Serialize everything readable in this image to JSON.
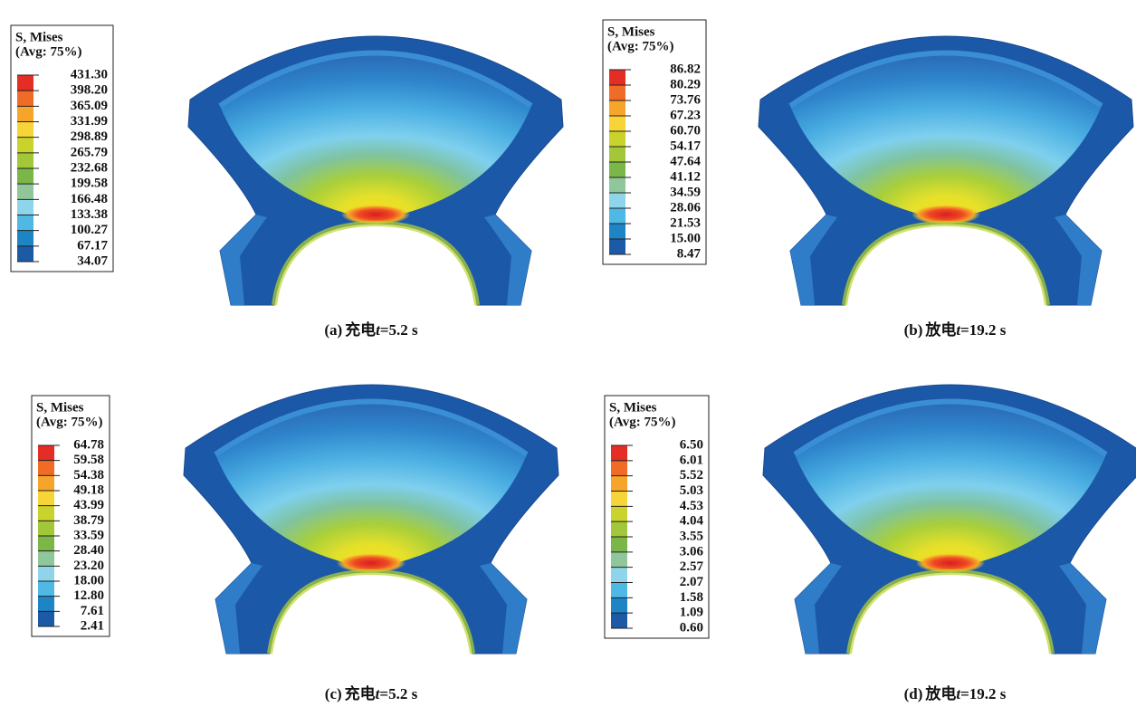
{
  "panels": [
    {
      "legend": {
        "title": [
          "S, Mises",
          "(Avg: 75%)"
        ],
        "values": [
          "431.30",
          "398.20",
          "365.09",
          "331.99",
          "298.89",
          "265.79",
          "232.68",
          "199.58",
          "166.48",
          "133.38",
          "100.27",
          "67.17",
          "34.07"
        ]
      },
      "caption": {
        "label": "(a)",
        "name": "充电",
        "variable": "t",
        "time": "=5.2 s"
      }
    },
    {
      "legend": {
        "title": [
          "S, Mises",
          "(Avg: 75%)"
        ],
        "values": [
          "86.82",
          "80.29",
          "73.76",
          "67.23",
          "60.70",
          "54.17",
          "47.64",
          "41.12",
          "34.59",
          "28.06",
          "21.53",
          "15.00",
          "8.47"
        ]
      },
      "caption": {
        "label": "(b)",
        "name": "放电",
        "variable": "t",
        "time": "=19.2 s"
      }
    },
    {
      "legend": {
        "title": [
          "S, Mises",
          "(Avg: 75%)"
        ],
        "values": [
          "64.78",
          "59.58",
          "54.38",
          "49.18",
          "43.99",
          "38.79",
          "33.59",
          "28.40",
          "23.20",
          "18.00",
          "12.80",
          "7.61",
          "2.41"
        ]
      },
      "caption": {
        "label": "(c)",
        "name": "充电",
        "variable": "t",
        "time": "=5.2 s"
      }
    },
    {
      "legend": {
        "title": [
          "S, Mises",
          "(Avg: 75%)"
        ],
        "values": [
          "6.50",
          "6.01",
          "5.52",
          "5.03",
          "4.53",
          "4.04",
          "3.55",
          "3.06",
          "2.57",
          "2.07",
          "1.58",
          "1.09",
          "0.60"
        ]
      },
      "caption": {
        "label": "(d)",
        "name": "放电",
        "variable": "t",
        "time": "=19.2 s"
      }
    }
  ]
}
